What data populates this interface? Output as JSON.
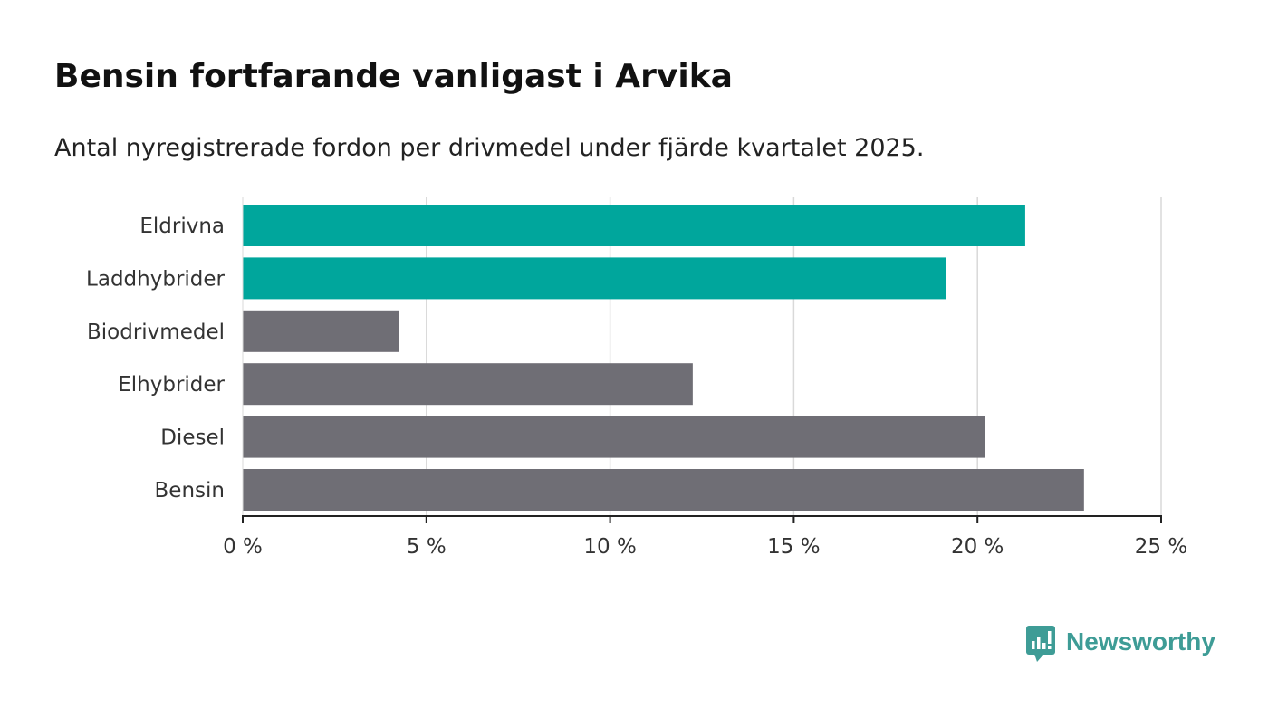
{
  "title": "Bensin fortfarande vanligast i Arvika",
  "subtitle": "Antal nyregistrerade fordon per drivmedel under fjärde kvartalet 2025.",
  "brand": {
    "name": "Newsworthy",
    "icon": "newsworthy-logo-icon",
    "color": "#3e9c96"
  },
  "chart_data": {
    "type": "bar",
    "orientation": "horizontal",
    "categories": [
      "Eldrivna",
      "Laddhybrider",
      "Biodrivmedel",
      "Elhybrider",
      "Diesel",
      "Bensin"
    ],
    "values": [
      21.3,
      19.15,
      4.25,
      12.25,
      20.2,
      22.9
    ],
    "bar_colors": [
      "#00a69c",
      "#00a69c",
      "#6f6e75",
      "#6f6e75",
      "#6f6e75",
      "#6f6e75"
    ],
    "xlim": [
      0,
      25
    ],
    "xticks": [
      0,
      5,
      10,
      15,
      20,
      25
    ],
    "xtick_labels": [
      "0 %",
      "5 %",
      "10 %",
      "15 %",
      "20 %",
      "25 %"
    ],
    "grid": "vertical",
    "legend": "none"
  }
}
